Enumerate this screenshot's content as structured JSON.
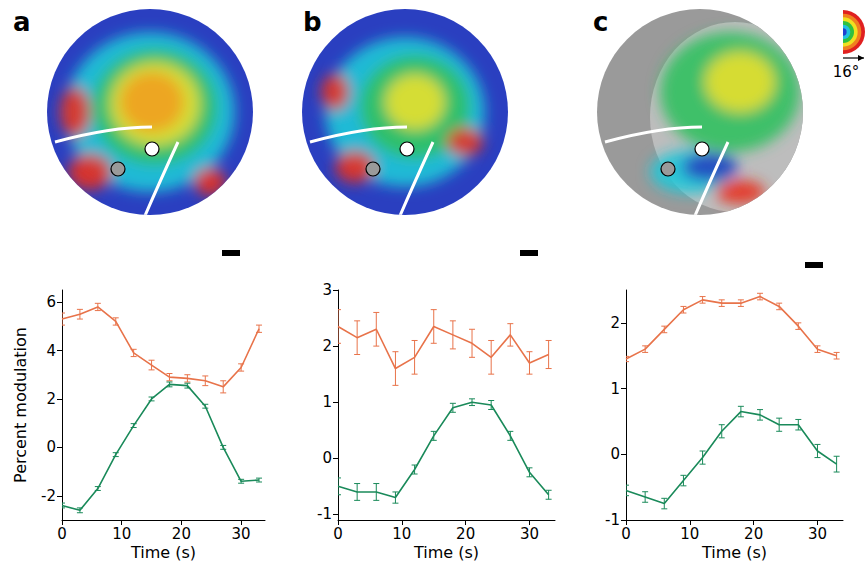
{
  "figure": {
    "colormap_label": "16°"
  },
  "chart_data": [
    {
      "type": "line",
      "title": "a",
      "xlabel": "Time (s)",
      "ylabel": "Percent modulation",
      "grid": false,
      "x": [
        0,
        3,
        6,
        9,
        12,
        15,
        18,
        21,
        24,
        27,
        30,
        33
      ],
      "xlim": [
        0,
        34
      ],
      "xticks": [
        0,
        10,
        20,
        30
      ],
      "ylim": [
        -3,
        6.5
      ],
      "yticks": [
        -2,
        0,
        2,
        4,
        6
      ],
      "series": [
        {
          "color": "#e8734a",
          "values": [
            5.3,
            5.5,
            5.8,
            5.2,
            3.9,
            3.4,
            2.9,
            2.85,
            2.75,
            2.5,
            3.3,
            4.9
          ],
          "errors": [
            0.25,
            0.2,
            0.15,
            0.15,
            0.15,
            0.2,
            0.15,
            0.15,
            0.2,
            0.25,
            0.15,
            0.15
          ]
        },
        {
          "color": "#1a8a5a",
          "values": [
            -2.4,
            -2.6,
            -1.7,
            -0.3,
            0.9,
            2.0,
            2.6,
            2.55,
            1.7,
            0.0,
            -1.4,
            -1.35
          ],
          "errors": [
            0.1,
            0.1,
            0.08,
            0.08,
            0.08,
            0.08,
            0.1,
            0.1,
            0.08,
            0.08,
            0.08,
            0.08
          ]
        }
      ]
    },
    {
      "type": "line",
      "title": "b",
      "xlabel": "Time (s)",
      "grid": false,
      "x": [
        0,
        3,
        6,
        9,
        12,
        15,
        18,
        21,
        24,
        27,
        30,
        33
      ],
      "xlim": [
        0,
        34
      ],
      "xticks": [
        0,
        10,
        20,
        30
      ],
      "ylim": [
        -1.1,
        3
      ],
      "yticks": [
        -1,
        0,
        1,
        2,
        3
      ],
      "series": [
        {
          "color": "#e8734a",
          "values": [
            2.35,
            2.15,
            2.3,
            1.6,
            1.8,
            2.35,
            2.2,
            2.05,
            1.8,
            2.2,
            1.7,
            1.85
          ],
          "errors": [
            0.3,
            0.3,
            0.3,
            0.3,
            0.3,
            0.3,
            0.25,
            0.25,
            0.3,
            0.2,
            0.2,
            0.25
          ]
        },
        {
          "color": "#1a8a5a",
          "values": [
            -0.5,
            -0.6,
            -0.6,
            -0.7,
            -0.2,
            0.4,
            0.9,
            1.0,
            0.95,
            0.4,
            -0.25,
            -0.65
          ],
          "errors": [
            0.15,
            0.15,
            0.15,
            0.1,
            0.08,
            0.08,
            0.08,
            0.06,
            0.08,
            0.08,
            0.08,
            0.08
          ]
        }
      ]
    },
    {
      "type": "line",
      "title": "c",
      "xlabel": "Time (s)",
      "grid": false,
      "x": [
        0,
        3,
        6,
        9,
        12,
        15,
        18,
        21,
        24,
        27,
        30,
        33
      ],
      "xlim": [
        0,
        34
      ],
      "xticks": [
        0,
        10,
        20,
        30
      ],
      "ylim": [
        -1,
        2.5
      ],
      "yticks": [
        -1,
        0,
        1,
        2
      ],
      "series": [
        {
          "color": "#e8734a",
          "values": [
            1.45,
            1.6,
            1.9,
            2.2,
            2.35,
            2.3,
            2.3,
            2.4,
            2.25,
            1.95,
            1.6,
            1.5
          ],
          "errors": [
            0.04,
            0.05,
            0.05,
            0.05,
            0.05,
            0.05,
            0.05,
            0.05,
            0.05,
            0.05,
            0.05,
            0.05
          ]
        },
        {
          "color": "#1a8a5a",
          "values": [
            -0.55,
            -0.65,
            -0.75,
            -0.4,
            -0.05,
            0.35,
            0.65,
            0.6,
            0.45,
            0.45,
            0.05,
            -0.15
          ],
          "errors": [
            0.08,
            0.08,
            0.08,
            0.08,
            0.1,
            0.1,
            0.08,
            0.08,
            0.1,
            0.08,
            0.1,
            0.12
          ]
        }
      ]
    }
  ]
}
